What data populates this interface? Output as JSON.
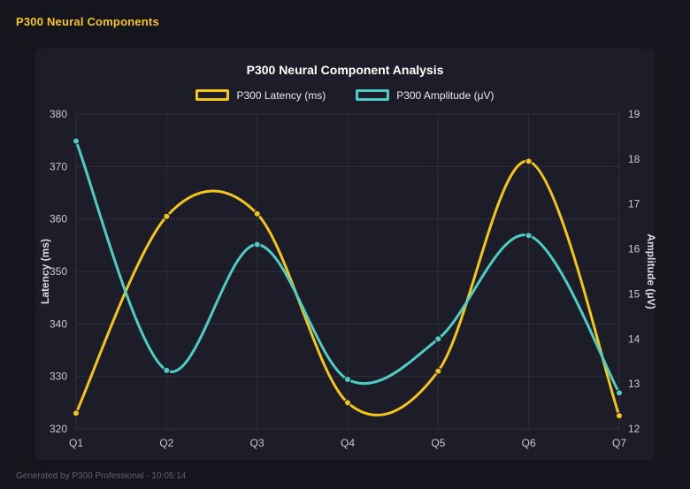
{
  "page": {
    "title": "P300 Neural Components",
    "footer": "Generated by P300 Professional - 10:05:14"
  },
  "colors": {
    "background": "#15151e",
    "panel": "#1d1d2a",
    "accent_yellow": "#f5c518",
    "accent_teal": "#4ecdc4",
    "grid": "rgba(255,255,255,0.08)",
    "tick_text": "#c9c9d4",
    "axis_title_text": "#dcdce4"
  },
  "chart_data": {
    "type": "line",
    "title": "P300 Neural Component Analysis",
    "categories": [
      "Q1",
      "Q2",
      "Q3",
      "Q4",
      "Q5",
      "Q6",
      "Q7"
    ],
    "series": [
      {
        "name": "P300 Latency (ms)",
        "axis": "left",
        "color": "#f5c518",
        "values": [
          323,
          360.5,
          361,
          325,
          331,
          371,
          322.5
        ]
      },
      {
        "name": "P300 Amplitude (μV)",
        "axis": "right",
        "color": "#4ecdc4",
        "values": [
          18.4,
          13.3,
          16.1,
          13.1,
          14,
          16.3,
          12.8
        ]
      }
    ],
    "left_axis": {
      "label": "Latency (ms)",
      "min": 320,
      "max": 380,
      "step": 10
    },
    "right_axis": {
      "label": "Amplitude (μV)",
      "min": 12,
      "max": 19,
      "step": 1
    },
    "legend_position": "top",
    "grid": true,
    "smooth": true
  }
}
